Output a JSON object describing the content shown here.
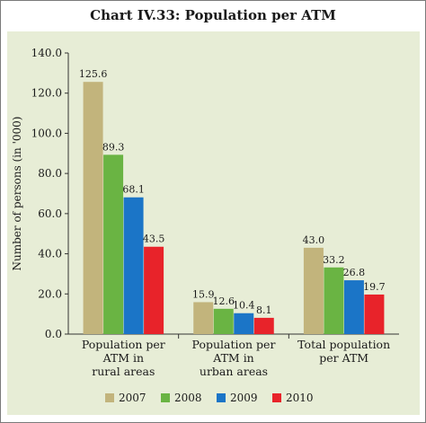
{
  "chart_data": {
    "type": "bar",
    "title": "Chart IV.33: Population per ATM",
    "xlabel": "",
    "ylabel": "Number of persons (in '000)",
    "ylim": [
      0,
      140
    ],
    "yticks": [
      "0.0",
      "20.0",
      "40.0",
      "60.0",
      "80.0",
      "100.0",
      "120.0",
      "140.0"
    ],
    "categories": [
      [
        "Population per",
        "ATM in",
        "rural areas"
      ],
      [
        "Population per",
        "ATM in",
        "urban areas"
      ],
      [
        "Total population",
        "per ATM"
      ]
    ],
    "series": [
      {
        "name": "2007",
        "color": "#c2b47c",
        "values": [
          125.6,
          15.9,
          43.0
        ],
        "labels": [
          "125.6",
          "15.9",
          "43.0"
        ]
      },
      {
        "name": "2008",
        "color": "#6ab443",
        "values": [
          89.3,
          12.6,
          33.2
        ],
        "labels": [
          "89.3",
          "12.6",
          "33.2"
        ]
      },
      {
        "name": "2009",
        "color": "#1b75c7",
        "values": [
          68.1,
          10.4,
          26.8
        ],
        "labels": [
          "68.1",
          "10.4",
          "26.8"
        ]
      },
      {
        "name": "2010",
        "color": "#e8232a",
        "values": [
          43.5,
          8.1,
          19.7
        ],
        "labels": [
          "43.5",
          "8.1",
          "19.7"
        ]
      }
    ],
    "grid": false,
    "legend": "bottom"
  }
}
